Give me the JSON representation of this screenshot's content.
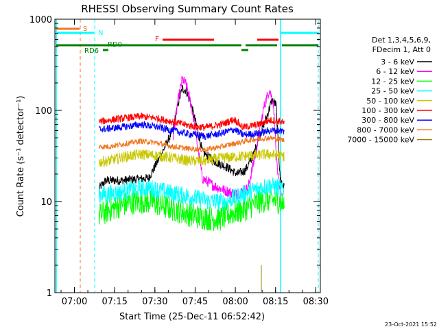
{
  "chart_data": {
    "type": "line",
    "title": "RHESSI Observing Summary Count Rates",
    "xlabel": "Start Time (25-Dec-11 06:52:42)",
    "ylabel": "Count Rate (s⁻¹ detector⁻¹)",
    "yscale": "log",
    "ylim": [
      1,
      1000
    ],
    "xlim_minutes": [
      0,
      99
    ],
    "x_tick_labels": [
      "07:00",
      "07:15",
      "07:30",
      "07:45",
      "08:00",
      "08:15",
      "08:30"
    ],
    "x_tick_minutes": [
      7.3,
      22.3,
      37.3,
      52.3,
      67.3,
      82.3,
      97.3
    ],
    "y_tick_labels": [
      "1",
      "10",
      "100",
      "1000"
    ],
    "y_tick_values": [
      1,
      10,
      100,
      1000
    ],
    "legend_header": [
      "Det 1,3,4,5,6,9,",
      "FDecim 1, Att 0"
    ],
    "legend_position": "right",
    "footer_date": "23-Oct-2021 15:52",
    "flags": [
      {
        "label": "S",
        "color": "#f07820"
      },
      {
        "label": "N",
        "color": "#00ffff"
      },
      {
        "label": "F",
        "color": "#ff0000"
      },
      {
        "label": "RD0",
        "color": "#008000"
      },
      {
        "label": "RD6",
        "color": "#008000"
      }
    ],
    "series": [
      {
        "name": "3 - 6 keV",
        "color": "#000000",
        "x": [
          16.5,
          19,
          25,
          35,
          39,
          44,
          46,
          47.5,
          49,
          51,
          53,
          55,
          59,
          64,
          68,
          71,
          74,
          76,
          79,
          81,
          82.5,
          84,
          85.6
        ],
        "y": [
          14,
          17,
          17,
          18,
          30,
          60,
          120,
          175,
          165,
          110,
          65,
          35,
          28,
          24,
          20,
          22,
          32,
          50,
          85,
          130,
          115,
          18,
          14
        ]
      },
      {
        "name": "6 - 12 keV",
        "color": "#ff00ff",
        "x": [
          44,
          46,
          47.5,
          49,
          51,
          53,
          55,
          59,
          64,
          68,
          72,
          75,
          78,
          80,
          81.5,
          83,
          84.5
        ],
        "y": [
          50,
          130,
          220,
          190,
          110,
          45,
          18,
          15,
          13,
          12,
          14,
          35,
          110,
          170,
          120,
          20,
          12
        ]
      },
      {
        "name": "12 - 25 keV",
        "color": "#00ff00",
        "x": [
          16.5,
          20,
          24,
          30,
          36,
          40,
          46,
          52,
          58,
          62,
          66,
          70,
          76,
          80,
          84,
          85.6
        ],
        "y": [
          7,
          8,
          9,
          10,
          10,
          9,
          8,
          7,
          6.5,
          6.5,
          7.5,
          8,
          10,
          10.5,
          10,
          9
        ]
      },
      {
        "name": "25 - 50 keV",
        "color": "#00ffff",
        "x": [
          16.5,
          20,
          26,
          32,
          36,
          40,
          46,
          52,
          58,
          64,
          67,
          70,
          76,
          80,
          84,
          85.6
        ],
        "y": [
          12,
          12,
          13,
          14,
          14,
          13,
          12,
          11,
          10,
          10,
          11,
          12,
          14,
          15,
          14,
          13
        ]
      },
      {
        "name": "50 - 100 keV",
        "color": "#c8c800",
        "x": [
          16.5,
          20,
          26,
          32,
          38,
          44,
          50,
          56,
          62,
          68,
          74,
          80,
          84,
          85.6
        ],
        "y": [
          27,
          28,
          31,
          33,
          32,
          30,
          28,
          28,
          30,
          31,
          32,
          33,
          32,
          31
        ]
      },
      {
        "name": "100 - 300 keV",
        "color": "#ff0000",
        "x": [
          16.5,
          20,
          26,
          32,
          38,
          44,
          50,
          56,
          62,
          67,
          70,
          76,
          80,
          84,
          85.6
        ],
        "y": [
          75,
          78,
          82,
          86,
          82,
          75,
          68,
          65,
          70,
          80,
          65,
          70,
          78,
          76,
          72
        ]
      },
      {
        "name": "300 - 800 keV",
        "color": "#0000ff",
        "x": [
          16.5,
          20,
          26,
          32,
          38,
          44,
          50,
          56,
          62,
          67,
          70,
          76,
          80,
          84,
          85.6
        ],
        "y": [
          62,
          63,
          66,
          70,
          66,
          60,
          55,
          52,
          56,
          62,
          54,
          56,
          60,
          60,
          58
        ]
      },
      {
        "name": "800 - 7000 keV",
        "color": "#f07820",
        "x": [
          16.5,
          20,
          26,
          32,
          38,
          44,
          50,
          56,
          62,
          68,
          74,
          80,
          84,
          85.6
        ],
        "y": [
          40,
          40,
          43,
          46,
          44,
          40,
          38,
          37,
          40,
          44,
          48,
          50,
          48,
          47
        ]
      },
      {
        "name": "7000 - 15000 keV",
        "color": "#a08000",
        "x": [
          77,
          77
        ],
        "y": [
          1.05,
          2.0
        ]
      }
    ]
  }
}
